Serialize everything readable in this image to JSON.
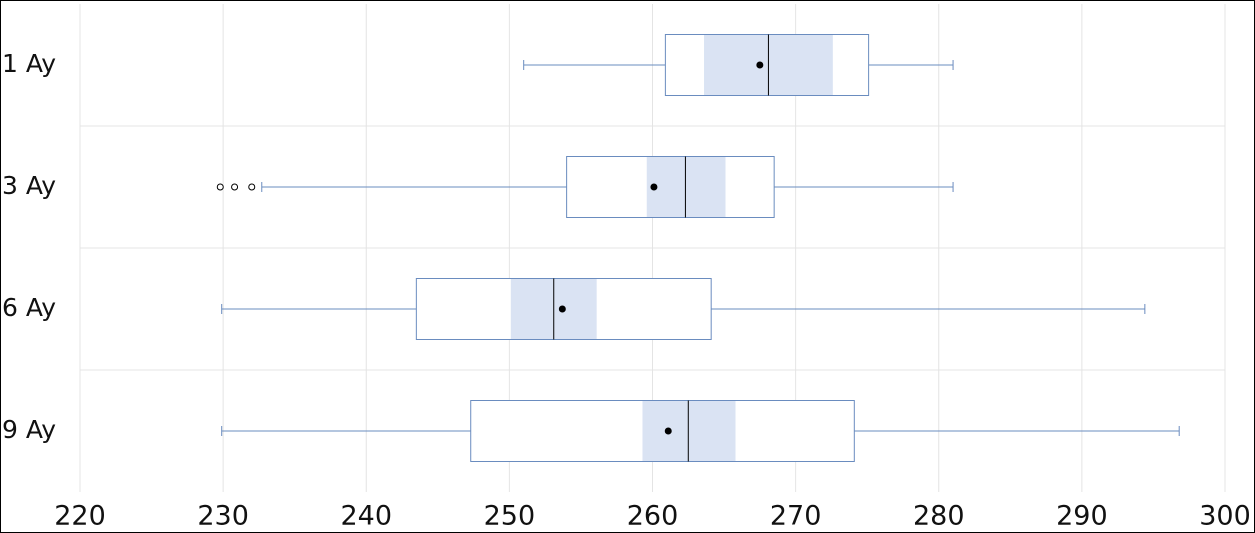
{
  "chart_data": {
    "type": "boxplot",
    "orientation": "horizontal",
    "categories": [
      "1 Ay",
      "3 Ay",
      "6 Ay",
      "9 Ay"
    ],
    "boxes": [
      {
        "min": 251.0,
        "q1": 260.9,
        "median": 268.1,
        "q3": 275.1,
        "max": 281.0,
        "mean": 267.5,
        "notch": [
          263.6,
          272.6
        ],
        "outliers": []
      },
      {
        "min": 232.7,
        "q1": 254.0,
        "median": 262.3,
        "q3": 268.5,
        "max": 281.0,
        "mean": 260.1,
        "notch": [
          259.6,
          265.1
        ],
        "outliers": [
          229.8,
          230.8,
          232.0
        ]
      },
      {
        "min": 229.9,
        "q1": 243.5,
        "median": 253.1,
        "q3": 264.1,
        "max": 294.4,
        "mean": 253.7,
        "notch": [
          250.1,
          256.1
        ],
        "outliers": []
      },
      {
        "min": 229.9,
        "q1": 247.3,
        "median": 262.5,
        "q3": 274.1,
        "max": 296.8,
        "mean": 261.1,
        "notch": [
          259.3,
          265.8
        ],
        "outliers": []
      }
    ],
    "color": "#6a8cbf",
    "notch_color": "#dae3f3",
    "xlim": [
      220,
      300
    ],
    "xticks": [
      220,
      230,
      240,
      250,
      260,
      270,
      280,
      290,
      300
    ],
    "grid": true
  }
}
